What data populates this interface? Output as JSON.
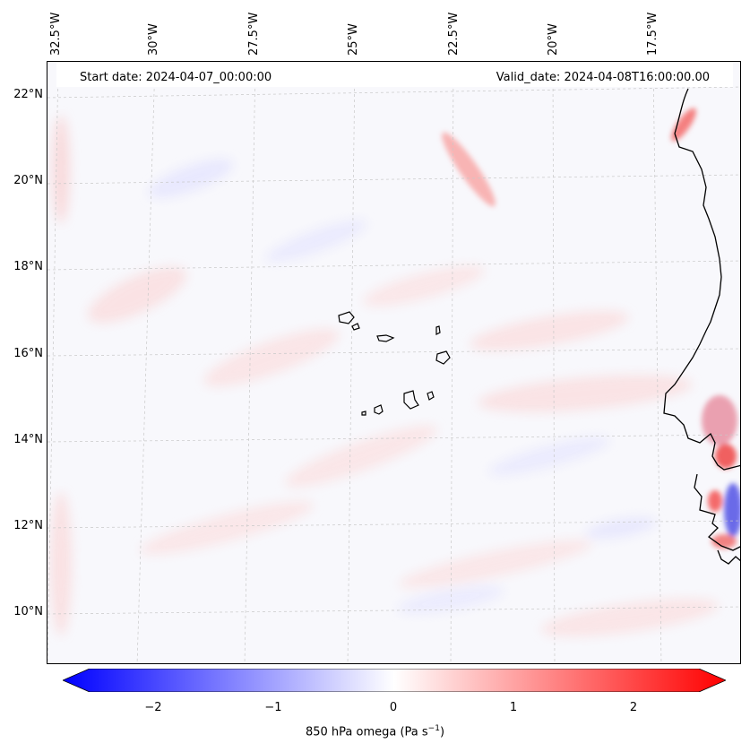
{
  "map": {
    "header": {
      "start_date": "Start date: 2024-04-07_00:00:00",
      "valid_date": "Valid_date: 2024-04-08T16:00:00.00"
    },
    "lon_labels": [
      "32.5°W",
      "30°W",
      "27.5°W",
      "25°W",
      "22.5°W",
      "20°W",
      "17.5°W"
    ],
    "lat_labels": [
      "22°N",
      "20°N",
      "18°N",
      "16°N",
      "14°N",
      "12°N",
      "10°N"
    ],
    "region": "Cape Verde and West African coast",
    "field": "850 hPa omega"
  },
  "colorbar": {
    "ticks": [
      "−2",
      "−1",
      "0",
      "1",
      "2"
    ],
    "label": "850 hPa omega (Pa s",
    "label_exp": "−1",
    "label_end": ")",
    "colors": {
      "neg": "#0000ff",
      "zero": "#ffffff",
      "pos": "#ff0000"
    }
  }
}
